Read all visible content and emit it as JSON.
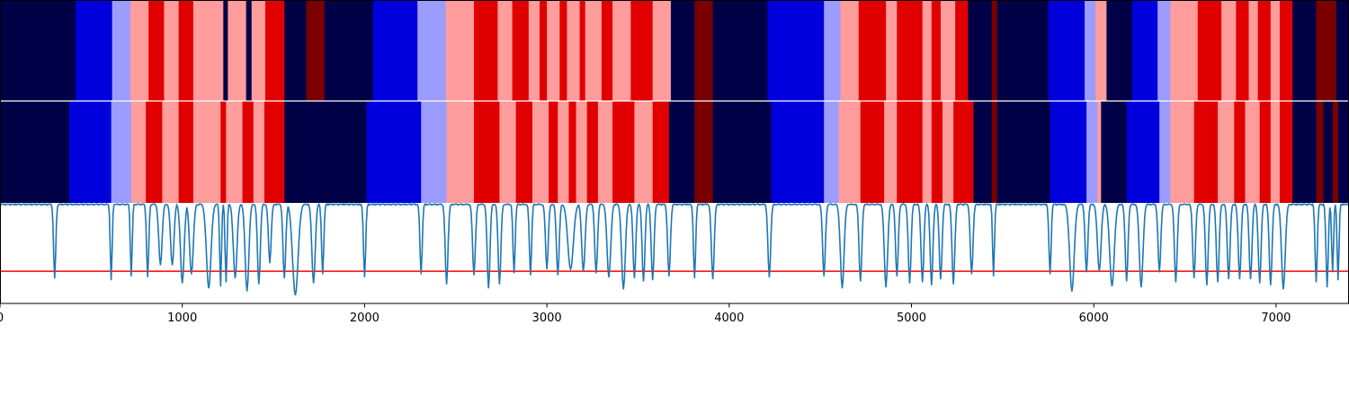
{
  "chart_data": {
    "type": "segmentation-comparison",
    "xlim": [
      0,
      7400
    ],
    "x_ticks": [
      0,
      1000,
      2000,
      3000,
      4000,
      5000,
      6000,
      7000
    ],
    "x_tick_labels": [
      "0",
      "1000",
      "2000",
      "3000",
      "4000",
      "5000",
      "6000",
      "7000"
    ],
    "palette": {
      "0": "#000046",
      "1": "#0000dc",
      "2": "#9c9cff",
      "3": "#ff9c9c",
      "4": "#e00000",
      "5": "#7a0000"
    },
    "rows": [
      {
        "name": "top",
        "segments": [
          [
            0,
            415,
            0
          ],
          [
            415,
            615,
            1
          ],
          [
            615,
            715,
            2
          ],
          [
            715,
            815,
            3
          ],
          [
            815,
            900,
            4
          ],
          [
            900,
            980,
            3
          ],
          [
            980,
            1060,
            4
          ],
          [
            1060,
            1225,
            3
          ],
          [
            1225,
            1250,
            0
          ],
          [
            1250,
            1350,
            3
          ],
          [
            1350,
            1380,
            0
          ],
          [
            1380,
            1455,
            3
          ],
          [
            1455,
            1560,
            4
          ],
          [
            1560,
            1680,
            0
          ],
          [
            1680,
            1780,
            5
          ],
          [
            1780,
            2045,
            0
          ],
          [
            2045,
            2290,
            1
          ],
          [
            2290,
            2445,
            2
          ],
          [
            2445,
            2600,
            3
          ],
          [
            2600,
            2730,
            4
          ],
          [
            2730,
            2810,
            3
          ],
          [
            2810,
            2900,
            4
          ],
          [
            2900,
            2960,
            3
          ],
          [
            2960,
            3000,
            4
          ],
          [
            3000,
            3070,
            3
          ],
          [
            3070,
            3110,
            4
          ],
          [
            3110,
            3180,
            3
          ],
          [
            3180,
            3210,
            4
          ],
          [
            3210,
            3300,
            3
          ],
          [
            3300,
            3360,
            4
          ],
          [
            3360,
            3460,
            3
          ],
          [
            3460,
            3580,
            4
          ],
          [
            3580,
            3680,
            3
          ],
          [
            3680,
            3810,
            0
          ],
          [
            3810,
            3910,
            5
          ],
          [
            3910,
            4210,
            0
          ],
          [
            4210,
            4520,
            1
          ],
          [
            4520,
            4610,
            2
          ],
          [
            4610,
            4710,
            3
          ],
          [
            4710,
            4860,
            4
          ],
          [
            4860,
            4920,
            3
          ],
          [
            4920,
            5060,
            4
          ],
          [
            5060,
            5110,
            3
          ],
          [
            5110,
            5160,
            4
          ],
          [
            5160,
            5240,
            3
          ],
          [
            5240,
            5310,
            4
          ],
          [
            5310,
            5440,
            0
          ],
          [
            5440,
            5470,
            5
          ],
          [
            5470,
            5750,
            0
          ],
          [
            5750,
            5950,
            1
          ],
          [
            5950,
            6010,
            2
          ],
          [
            6010,
            6070,
            3
          ],
          [
            6070,
            6210,
            0
          ],
          [
            6210,
            6350,
            1
          ],
          [
            6350,
            6420,
            2
          ],
          [
            6420,
            6570,
            3
          ],
          [
            6570,
            6700,
            4
          ],
          [
            6700,
            6780,
            3
          ],
          [
            6780,
            6850,
            4
          ],
          [
            6850,
            6900,
            3
          ],
          [
            6900,
            6970,
            4
          ],
          [
            6970,
            7020,
            3
          ],
          [
            7020,
            7090,
            4
          ],
          [
            7090,
            7220,
            0
          ],
          [
            7220,
            7330,
            5
          ],
          [
            7330,
            7400,
            0
          ]
        ]
      },
      {
        "name": "bottom",
        "segments": [
          [
            0,
            380,
            0
          ],
          [
            380,
            610,
            1
          ],
          [
            610,
            720,
            2
          ],
          [
            720,
            800,
            3
          ],
          [
            800,
            890,
            4
          ],
          [
            890,
            980,
            3
          ],
          [
            980,
            1060,
            4
          ],
          [
            1060,
            1210,
            3
          ],
          [
            1210,
            1240,
            4
          ],
          [
            1240,
            1330,
            3
          ],
          [
            1330,
            1390,
            4
          ],
          [
            1390,
            1450,
            3
          ],
          [
            1450,
            1560,
            4
          ],
          [
            1560,
            2010,
            0
          ],
          [
            2010,
            2310,
            1
          ],
          [
            2310,
            2450,
            2
          ],
          [
            2450,
            2600,
            3
          ],
          [
            2600,
            2740,
            4
          ],
          [
            2740,
            2830,
            3
          ],
          [
            2830,
            2920,
            4
          ],
          [
            2920,
            3010,
            3
          ],
          [
            3010,
            3060,
            4
          ],
          [
            3060,
            3120,
            3
          ],
          [
            3120,
            3160,
            4
          ],
          [
            3160,
            3220,
            3
          ],
          [
            3220,
            3280,
            4
          ],
          [
            3280,
            3360,
            3
          ],
          [
            3360,
            3480,
            4
          ],
          [
            3480,
            3580,
            3
          ],
          [
            3580,
            3670,
            4
          ],
          [
            3670,
            3810,
            0
          ],
          [
            3810,
            3910,
            5
          ],
          [
            3910,
            4230,
            0
          ],
          [
            4230,
            4520,
            1
          ],
          [
            4520,
            4600,
            2
          ],
          [
            4600,
            4720,
            3
          ],
          [
            4720,
            4850,
            4
          ],
          [
            4850,
            4920,
            3
          ],
          [
            4920,
            5060,
            4
          ],
          [
            5060,
            5110,
            3
          ],
          [
            5110,
            5170,
            4
          ],
          [
            5170,
            5230,
            3
          ],
          [
            5230,
            5340,
            4
          ],
          [
            5340,
            5440,
            0
          ],
          [
            5440,
            5470,
            5
          ],
          [
            5470,
            5760,
            0
          ],
          [
            5760,
            5960,
            1
          ],
          [
            5960,
            6020,
            2
          ],
          [
            6020,
            6040,
            3
          ],
          [
            6040,
            6180,
            0
          ],
          [
            6180,
            6360,
            1
          ],
          [
            6360,
            6420,
            2
          ],
          [
            6420,
            6550,
            3
          ],
          [
            6550,
            6680,
            4
          ],
          [
            6680,
            6770,
            3
          ],
          [
            6770,
            6830,
            4
          ],
          [
            6830,
            6910,
            3
          ],
          [
            6910,
            6970,
            4
          ],
          [
            6970,
            7020,
            3
          ],
          [
            7020,
            7090,
            4
          ],
          [
            7090,
            7220,
            0
          ],
          [
            7220,
            7260,
            5
          ],
          [
            7260,
            7310,
            0
          ],
          [
            7310,
            7340,
            5
          ],
          [
            7340,
            7400,
            0
          ]
        ]
      }
    ],
    "signal": {
      "color": "#1f77b4",
      "ylim": [
        0,
        1
      ],
      "baseline": 0.99,
      "dips": [
        [
          300,
          0.75,
          12
        ],
        [
          610,
          0.77,
          10
        ],
        [
          720,
          0.73,
          10
        ],
        [
          810,
          0.74,
          12
        ],
        [
          880,
          0.62,
          18
        ],
        [
          945,
          0.62,
          18
        ],
        [
          1000,
          0.8,
          20
        ],
        [
          1050,
          0.71,
          20
        ],
        [
          1145,
          0.85,
          25
        ],
        [
          1210,
          0.83,
          10
        ],
        [
          1240,
          0.79,
          10
        ],
        [
          1290,
          0.75,
          20
        ],
        [
          1355,
          0.88,
          20
        ],
        [
          1420,
          0.81,
          15
        ],
        [
          1480,
          0.6,
          15
        ],
        [
          1560,
          0.75,
          15
        ],
        [
          1620,
          0.92,
          30
        ],
        [
          1720,
          0.8,
          18
        ],
        [
          1770,
          0.71,
          12
        ],
        [
          2000,
          0.74,
          12
        ],
        [
          2310,
          0.71,
          12
        ],
        [
          2450,
          0.81,
          15
        ],
        [
          2600,
          0.72,
          15
        ],
        [
          2680,
          0.85,
          15
        ],
        [
          2740,
          0.81,
          15
        ],
        [
          2820,
          0.7,
          12
        ],
        [
          2910,
          0.72,
          12
        ],
        [
          3000,
          0.66,
          15
        ],
        [
          3060,
          0.72,
          15
        ],
        [
          3130,
          0.66,
          30
        ],
        [
          3200,
          0.68,
          18
        ],
        [
          3270,
          0.7,
          15
        ],
        [
          3340,
          0.74,
          20
        ],
        [
          3420,
          0.86,
          20
        ],
        [
          3480,
          0.75,
          15
        ],
        [
          3530,
          0.78,
          15
        ],
        [
          3580,
          0.77,
          15
        ],
        [
          3670,
          0.73,
          15
        ],
        [
          3810,
          0.75,
          12
        ],
        [
          3910,
          0.76,
          15
        ],
        [
          4220,
          0.74,
          15
        ],
        [
          4520,
          0.73,
          15
        ],
        [
          4620,
          0.85,
          20
        ],
        [
          4720,
          0.78,
          15
        ],
        [
          4860,
          0.84,
          18
        ],
        [
          4920,
          0.73,
          15
        ],
        [
          4990,
          0.8,
          15
        ],
        [
          5060,
          0.79,
          15
        ],
        [
          5110,
          0.82,
          15
        ],
        [
          5160,
          0.76,
          15
        ],
        [
          5230,
          0.81,
          15
        ],
        [
          5330,
          0.71,
          15
        ],
        [
          5450,
          0.73,
          10
        ],
        [
          5760,
          0.71,
          12
        ],
        [
          5880,
          0.88,
          25
        ],
        [
          5960,
          0.69,
          15
        ],
        [
          6030,
          0.68,
          20
        ],
        [
          6100,
          0.83,
          25
        ],
        [
          6180,
          0.78,
          15
        ],
        [
          6260,
          0.84,
          20
        ],
        [
          6360,
          0.69,
          15
        ],
        [
          6450,
          0.79,
          15
        ],
        [
          6550,
          0.75,
          15
        ],
        [
          6620,
          0.82,
          15
        ],
        [
          6680,
          0.79,
          15
        ],
        [
          6740,
          0.76,
          15
        ],
        [
          6800,
          0.76,
          15
        ],
        [
          6860,
          0.76,
          15
        ],
        [
          6910,
          0.8,
          15
        ],
        [
          6970,
          0.82,
          15
        ],
        [
          7040,
          0.86,
          20
        ],
        [
          7220,
          0.79,
          12
        ],
        [
          7280,
          0.84,
          12
        ],
        [
          7310,
          0.69,
          10
        ],
        [
          7340,
          0.77,
          10
        ]
      ]
    },
    "threshold": {
      "value": 0.32,
      "color": "#ff0000"
    }
  }
}
